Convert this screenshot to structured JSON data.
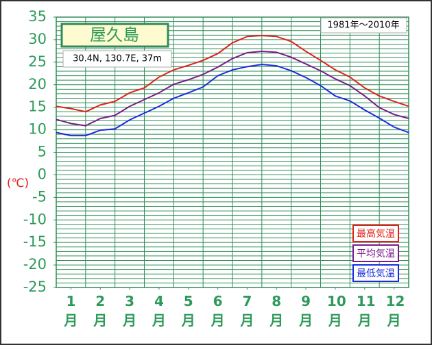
{
  "chart_data": {
    "type": "line",
    "title": "屋久島",
    "subtitle": "30.4N,  130.7E,  37m",
    "period": "1981年～2010年",
    "y_label": "(℃)",
    "x": [
      1,
      1.5,
      2,
      2.5,
      3,
      3.5,
      4,
      4.5,
      5,
      5.5,
      6,
      6.5,
      7,
      7.5,
      8,
      8.5,
      9,
      9.5,
      10,
      10.5,
      11,
      11.5,
      12,
      12.5,
      13
    ],
    "series": [
      {
        "name": "最高気温",
        "color": "#e0201a",
        "values": [
          15.2,
          14.7,
          14.0,
          15.5,
          16.3,
          18.2,
          19.3,
          21.7,
          23.3,
          24.3,
          25.4,
          26.9,
          29.3,
          30.7,
          30.9,
          30.7,
          29.6,
          27.4,
          25.4,
          23.3,
          21.7,
          19.3,
          17.5,
          16.3,
          15.2
        ]
      },
      {
        "name": "平均気温",
        "color": "#7a1a8a",
        "values": [
          12.3,
          11.4,
          10.9,
          12.5,
          13.2,
          15.2,
          16.7,
          18.2,
          20.1,
          21.1,
          22.3,
          23.9,
          25.8,
          27.1,
          27.4,
          27.2,
          26.1,
          24.6,
          23.1,
          21.3,
          19.8,
          17.5,
          14.9,
          13.4,
          12.5
        ]
      },
      {
        "name": "最低気温",
        "color": "#1a2ae0",
        "values": [
          9.4,
          8.7,
          8.7,
          9.9,
          10.2,
          12.2,
          13.7,
          15.2,
          17.0,
          18.2,
          19.5,
          22.0,
          23.3,
          24.0,
          24.5,
          24.2,
          23.1,
          21.6,
          19.8,
          17.5,
          16.4,
          14.4,
          12.6,
          10.6,
          9.4
        ]
      }
    ],
    "xlim": [
      1,
      13
    ],
    "xticks": [
      {
        "value": 1.5,
        "label": "1月"
      },
      {
        "value": 2.5,
        "label": "2月"
      },
      {
        "value": 3.5,
        "label": "3月"
      },
      {
        "value": 4.5,
        "label": "4月"
      },
      {
        "value": 5.5,
        "label": "5月"
      },
      {
        "value": 6.5,
        "label": "6月"
      },
      {
        "value": 7.5,
        "label": "7月"
      },
      {
        "value": 8.5,
        "label": "8月"
      },
      {
        "value": 9.5,
        "label": "9月"
      },
      {
        "value": 10.5,
        "label": "10月"
      },
      {
        "value": 11.5,
        "label": "11月"
      },
      {
        "value": 12.5,
        "label": "12月"
      }
    ],
    "xgrid": [
      2,
      3,
      4,
      5,
      6,
      7,
      8,
      9,
      10,
      11,
      12
    ],
    "ylim": [
      -25,
      35
    ],
    "yticks": [
      35,
      30,
      25,
      20,
      15,
      10,
      5,
      0,
      -5,
      -10,
      -15,
      -20,
      -25
    ],
    "minor_grid_step": 1,
    "grid": true,
    "legend": "lower right"
  }
}
